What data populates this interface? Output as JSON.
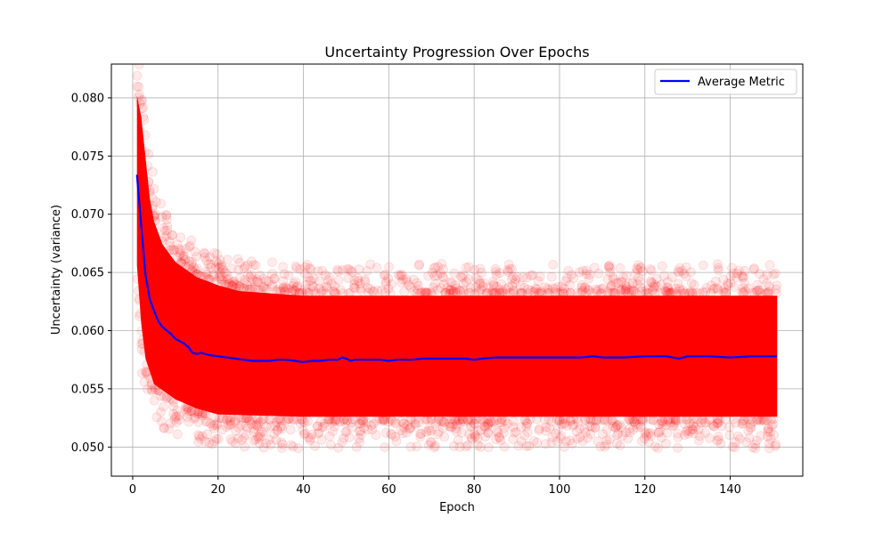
{
  "chart_data": {
    "type": "scatter",
    "title": "Uncertainty Progression Over Epochs",
    "xlabel": "Epoch",
    "ylabel": "Uncertainty (variance)",
    "xlim": [
      -5,
      157
    ],
    "ylim": [
      0.0475,
      0.0829
    ],
    "xticks": [
      "0",
      "20",
      "40",
      "60",
      "80",
      "100",
      "120",
      "140"
    ],
    "yticks": [
      "0.050",
      "0.055",
      "0.060",
      "0.065",
      "0.070",
      "0.075",
      "0.080"
    ],
    "grid": true,
    "legend": {
      "position": "top-right",
      "entries": [
        "Average Metric"
      ]
    },
    "colors": {
      "scatter": "#ff0000",
      "average": "#0000ff",
      "grid": "#b0b0b0"
    },
    "scatter_envelope": {
      "description_x": "epoch",
      "upper": [
        [
          1,
          0.0808
        ],
        [
          2,
          0.079
        ],
        [
          3,
          0.0755
        ],
        [
          4,
          0.072
        ],
        [
          5,
          0.07
        ],
        [
          7,
          0.068
        ],
        [
          10,
          0.0665
        ],
        [
          15,
          0.0652
        ],
        [
          20,
          0.0645
        ],
        [
          25,
          0.064
        ],
        [
          40,
          0.0636
        ],
        [
          80,
          0.0636
        ],
        [
          120,
          0.0636
        ],
        [
          151,
          0.0636
        ]
      ],
      "lower": [
        [
          1,
          0.065
        ],
        [
          2,
          0.06
        ],
        [
          3,
          0.057
        ],
        [
          5,
          0.0548
        ],
        [
          10,
          0.0535
        ],
        [
          15,
          0.0527
        ],
        [
          20,
          0.0522
        ],
        [
          40,
          0.052
        ],
        [
          80,
          0.052
        ],
        [
          120,
          0.052
        ],
        [
          151,
          0.052
        ]
      ]
    },
    "series": [
      {
        "name": "Average Metric",
        "x": [
          1,
          2,
          3,
          4,
          5,
          6,
          7,
          8,
          9,
          10,
          11,
          12,
          13,
          14,
          15,
          16,
          18,
          20,
          22,
          24,
          26,
          28,
          30,
          32,
          34,
          36,
          38,
          40,
          42,
          44,
          46,
          48,
          49,
          50,
          51,
          52,
          55,
          58,
          60,
          62,
          65,
          68,
          70,
          72,
          75,
          78,
          80,
          82,
          85,
          88,
          90,
          95,
          100,
          102,
          105,
          108,
          110,
          115,
          120,
          125,
          128,
          130,
          135,
          140,
          145,
          151
        ],
        "values": [
          0.0734,
          0.069,
          0.0648,
          0.0627,
          0.0617,
          0.0608,
          0.0603,
          0.06,
          0.0597,
          0.0593,
          0.0591,
          0.0589,
          0.0586,
          0.0581,
          0.058,
          0.0581,
          0.0579,
          0.0578,
          0.0577,
          0.0576,
          0.0575,
          0.0574,
          0.0574,
          0.0574,
          0.0575,
          0.0575,
          0.0574,
          0.0573,
          0.0574,
          0.0574,
          0.0575,
          0.0575,
          0.0577,
          0.0576,
          0.0574,
          0.0575,
          0.0575,
          0.0575,
          0.0574,
          0.0575,
          0.0575,
          0.0576,
          0.0576,
          0.0576,
          0.0576,
          0.0576,
          0.0575,
          0.0576,
          0.0577,
          0.0577,
          0.0577,
          0.0577,
          0.0577,
          0.0577,
          0.0577,
          0.0578,
          0.0577,
          0.0577,
          0.0578,
          0.0578,
          0.0576,
          0.0578,
          0.0578,
          0.0577,
          0.0578,
          0.0578
        ]
      }
    ]
  }
}
